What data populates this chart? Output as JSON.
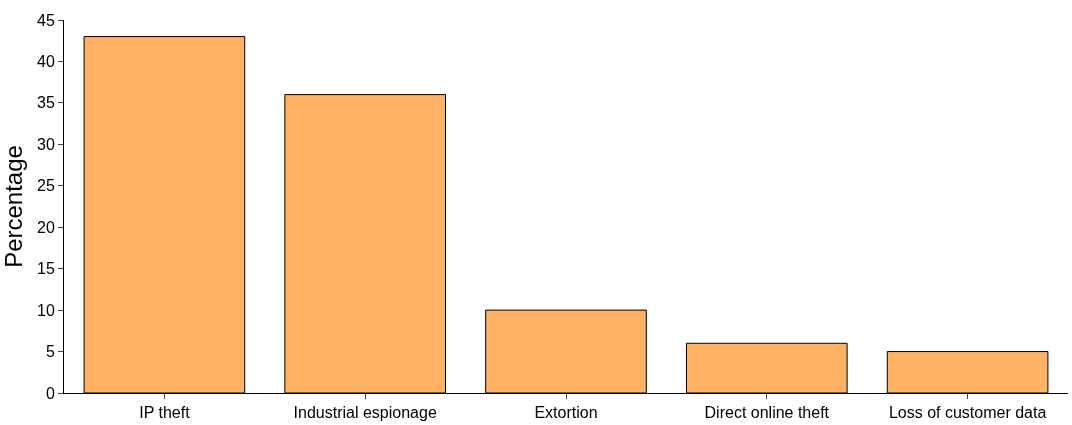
{
  "chart_data": {
    "type": "bar",
    "ylabel": "Percentage",
    "categories": [
      "IP theft",
      "Industrial espionage",
      "Extortion",
      "Direct online theft",
      "Loss of customer data"
    ],
    "values": [
      43,
      36,
      10,
      6,
      5
    ],
    "color": "#ffb266",
    "ylim": [
      0,
      45
    ],
    "yticks": [
      0,
      5,
      10,
      15,
      20,
      25,
      30,
      35,
      40,
      45
    ]
  }
}
